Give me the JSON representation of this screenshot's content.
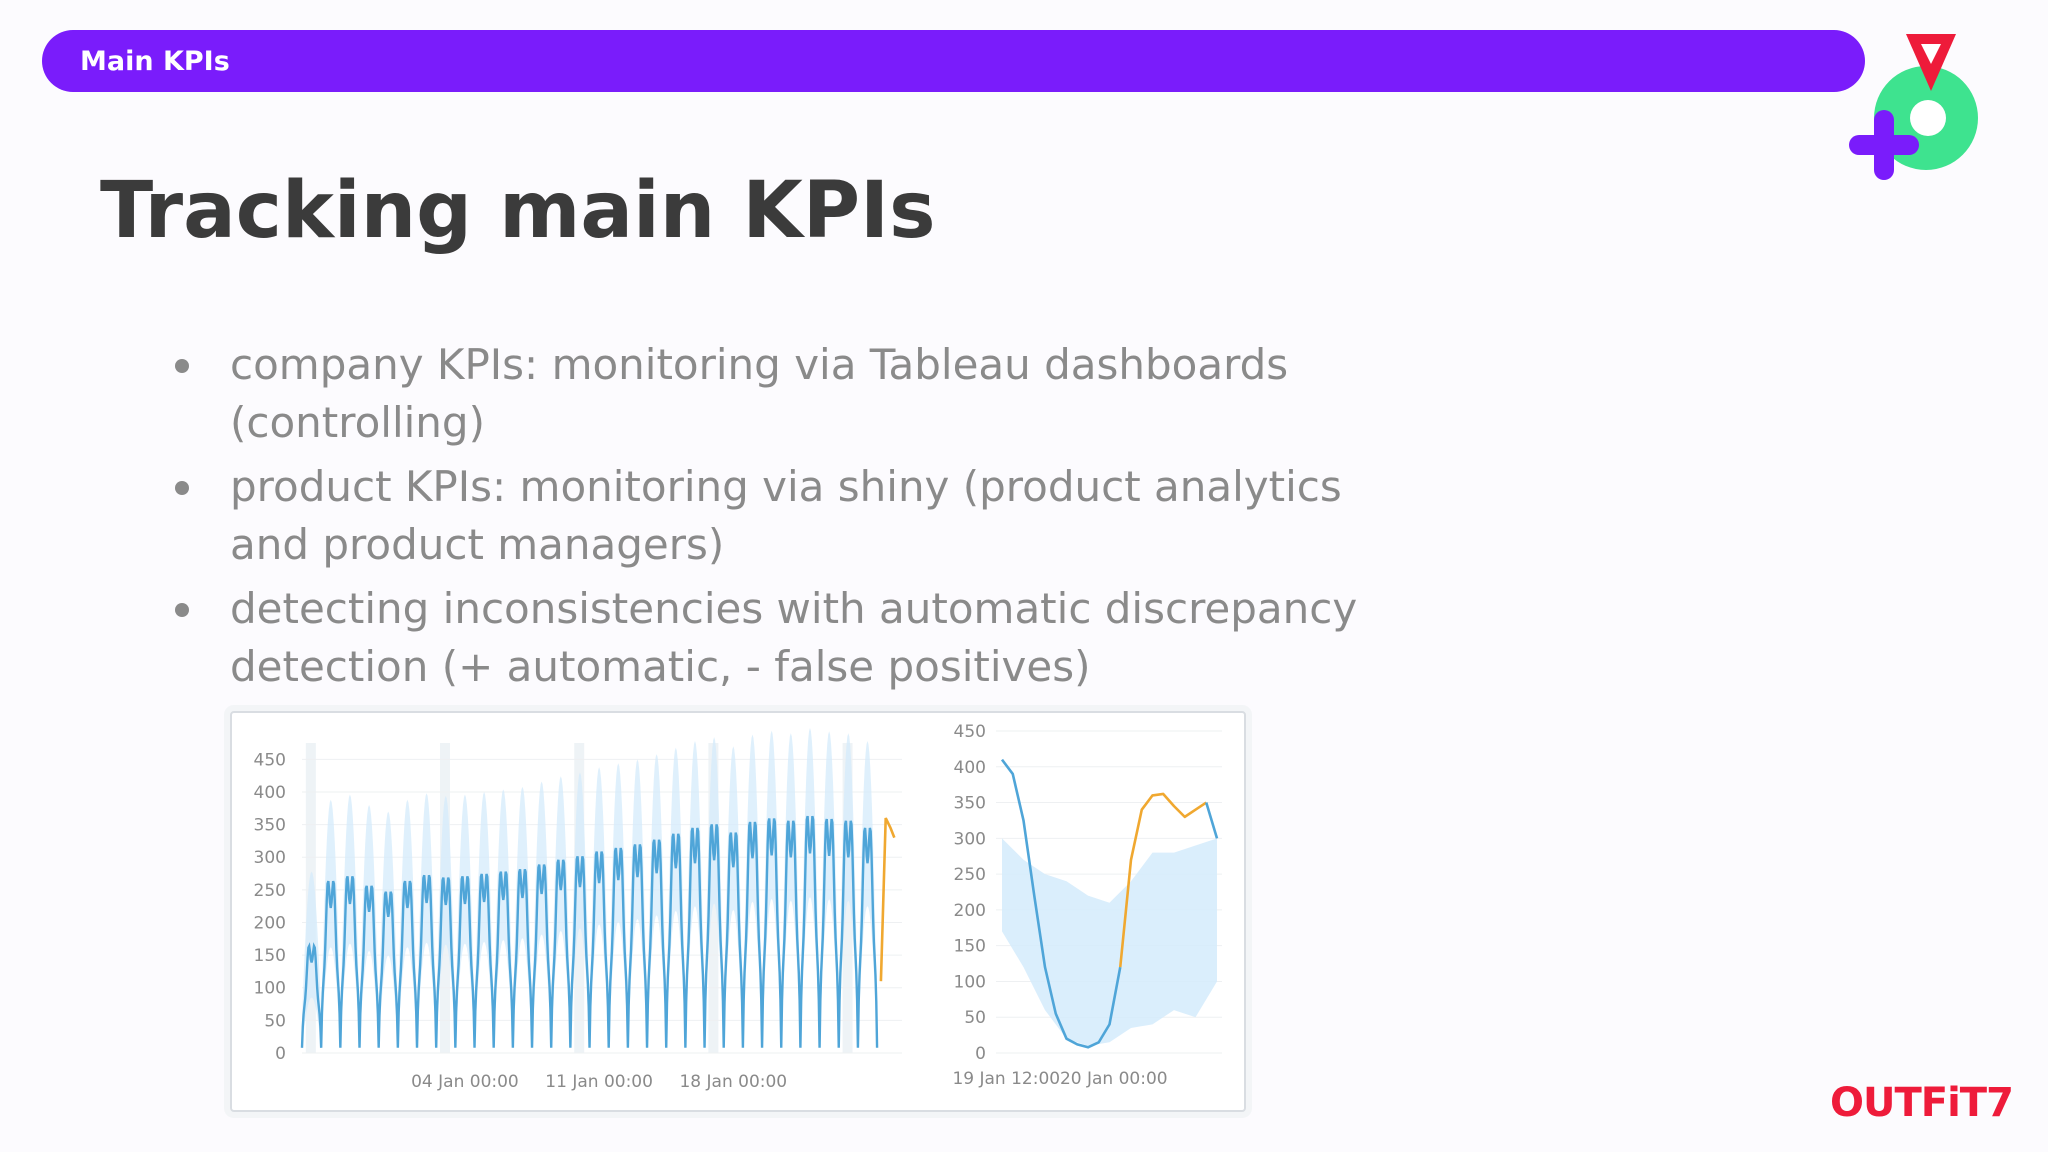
{
  "header": {
    "label": "Main KPIs"
  },
  "title": "Tracking main KPIs",
  "bullets": [
    "company KPIs: monitoring via Tableau dashboards (controlling)",
    "product KPIs: monitoring via shiny (product analytics and product managers)",
    "detecting inconsistencies with automatic discrepancy detection (+ automatic, - false positives)"
  ],
  "brand": "OUTFiT7",
  "colors": {
    "banner": "#7a1cfb",
    "series": "#4fa5d8",
    "band": "#d4ebfb",
    "anomaly": "#f0a830",
    "brand": "#ee1b3a"
  },
  "chart_data": [
    {
      "type": "line",
      "x_ticks": [
        "04 Jan 00:00",
        "11 Jan 00:00",
        "18 Jan 00:00"
      ],
      "y_ticks": [
        0,
        50,
        100,
        150,
        200,
        250,
        300,
        350,
        400,
        450
      ],
      "ylim": [
        0,
        475
      ],
      "xlim": [
        0,
        31.3
      ],
      "grid": true,
      "series": [
        {
          "role": "observed",
          "color": "#4fa5d8",
          "daily_peaks": [
            180,
            290,
            298,
            282,
            272,
            290,
            300,
            296,
            298,
            302,
            306,
            310,
            318,
            326,
            332,
            340,
            346,
            352,
            360,
            370,
            380,
            386,
            372,
            390,
            396,
            392,
            400,
            395,
            392,
            380
          ],
          "night_min": 8
        },
        {
          "role": "anomaly",
          "color": "#f0a830",
          "points": [
            [
              30.2,
              110
            ],
            [
              30.45,
              360
            ],
            [
              30.7,
              345
            ],
            [
              30.9,
              330
            ]
          ]
        }
      ]
    },
    {
      "type": "line",
      "x_ticks": [
        "19 Jan 12:00",
        "20 Jan 00:00"
      ],
      "y_ticks": [
        0,
        50,
        100,
        150,
        200,
        250,
        300,
        350,
        400,
        450
      ],
      "ylim": [
        0,
        450
      ],
      "xlim": [
        0,
        1
      ],
      "grid": true,
      "series": [
        {
          "role": "observed",
          "color": "#4fa5d8",
          "points": [
            [
              0.0,
              410
            ],
            [
              0.05,
              390
            ],
            [
              0.1,
              325
            ],
            [
              0.15,
              220
            ],
            [
              0.2,
              120
            ],
            [
              0.25,
              55
            ],
            [
              0.3,
              20
            ],
            [
              0.35,
              12
            ],
            [
              0.4,
              8
            ],
            [
              0.45,
              15
            ],
            [
              0.5,
              40
            ],
            [
              0.55,
              120
            ]
          ]
        },
        {
          "role": "anomaly",
          "color": "#f0a830",
          "points": [
            [
              0.55,
              120
            ],
            [
              0.6,
              270
            ],
            [
              0.65,
              340
            ],
            [
              0.7,
              360
            ],
            [
              0.75,
              362
            ],
            [
              0.8,
              345
            ],
            [
              0.85,
              330
            ],
            [
              0.9,
              340
            ],
            [
              0.95,
              350
            ]
          ]
        },
        {
          "role": "observed-tail",
          "color": "#4fa5d8",
          "points": [
            [
              0.95,
              350
            ],
            [
              1.0,
              300
            ]
          ]
        },
        {
          "role": "expected-band",
          "color": "#d4ebfb",
          "upper": [
            [
              0.0,
              300
            ],
            [
              0.1,
              270
            ],
            [
              0.2,
              250
            ],
            [
              0.3,
              240
            ],
            [
              0.4,
              220
            ],
            [
              0.5,
              210
            ],
            [
              0.6,
              240
            ],
            [
              0.7,
              280
            ],
            [
              0.8,
              280
            ],
            [
              0.9,
              290
            ],
            [
              1.0,
              300
            ]
          ],
          "lower": [
            [
              0.0,
              170
            ],
            [
              0.1,
              120
            ],
            [
              0.2,
              60
            ],
            [
              0.3,
              20
            ],
            [
              0.4,
              10
            ],
            [
              0.5,
              15
            ],
            [
              0.6,
              35
            ],
            [
              0.7,
              40
            ],
            [
              0.8,
              60
            ],
            [
              0.9,
              50
            ],
            [
              1.0,
              100
            ]
          ]
        }
      ]
    }
  ]
}
